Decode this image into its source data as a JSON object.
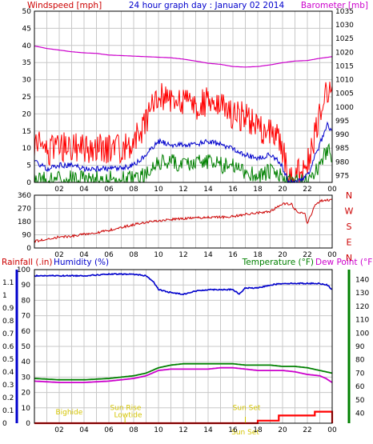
{
  "title": "24 hour graph day : January 02 2014",
  "colors": {
    "wind_avg": "#0000cc",
    "wind_gust": "#ff0000",
    "wind_low": "#008000",
    "baro": "#cc00cc",
    "wind_dir": "#cc0000",
    "temp": "#008000",
    "dew": "#cc00cc",
    "humidity": "#0000cc",
    "rain": "#ff0000",
    "astro": "#d4c400",
    "grid": "#c8c8c8",
    "frame": "#000000",
    "left_axis": "#0000cc",
    "right_axis": "#008000",
    "highlight": "#ff0000"
  },
  "chart_data": [
    {
      "type": "line",
      "name": "wind-barometer",
      "title": "24 hour graph day : January 02 2014",
      "left_label": "Windspeed [mph]",
      "right_label": "Barometer [mb]",
      "x_ticks": [
        "02",
        "04",
        "06",
        "08",
        "10",
        "12",
        "14",
        "16",
        "18",
        "20",
        "22",
        "00"
      ],
      "x_range": [
        0,
        24
      ],
      "y_left_ticks": [
        0,
        5,
        10,
        15,
        20,
        25,
        30,
        35,
        40,
        45,
        50
      ],
      "y_left_range": [
        0,
        50
      ],
      "y_right_ticks": [
        975,
        980,
        985,
        990,
        995,
        1000,
        1005,
        1010,
        1015,
        1020,
        1025,
        1030,
        1035
      ],
      "y_right_range": [
        972.5,
        1035
      ],
      "grid": true,
      "series": [
        {
          "axis": "right",
          "x": [
            0,
            1,
            2,
            3,
            4,
            5,
            6,
            7,
            8,
            9,
            10,
            11,
            12,
            13,
            14,
            15,
            16,
            17,
            18,
            19,
            20,
            21,
            22,
            23,
            24
          ],
          "values": [
            1022.3,
            1021.4,
            1020.8,
            1020.2,
            1019.8,
            1019.6,
            1019.0,
            1018.8,
            1018.6,
            1018.4,
            1018.2,
            1018.0,
            1017.5,
            1016.8,
            1016.0,
            1015.6,
            1014.8,
            1014.6,
            1014.8,
            1015.4,
            1016.2,
            1016.8,
            1017.0,
            1017.8,
            1018.4
          ]
        },
        {
          "x": [
            0,
            1,
            2,
            3,
            4,
            5,
            6,
            7,
            8,
            9,
            10,
            11,
            12,
            13,
            14,
            15,
            16,
            17,
            18,
            19,
            19.8,
            20.5,
            21,
            22,
            23,
            23.6,
            24
          ],
          "values": [
            12,
            9,
            10,
            11,
            10,
            10,
            10,
            10,
            12,
            18,
            25,
            24,
            23,
            22,
            24,
            22,
            20,
            19,
            16,
            15,
            12,
            2,
            2,
            5,
            20,
            28,
            24
          ]
        },
        {
          "x": [
            0,
            1,
            2,
            3,
            4,
            5,
            6,
            7,
            8,
            9,
            10,
            11,
            12,
            13,
            14,
            15,
            16,
            17,
            18,
            19,
            19.8,
            20.5,
            21,
            22,
            23,
            23.6,
            24
          ],
          "values": [
            6,
            4,
            5,
            5,
            4,
            4,
            4,
            4,
            5,
            8,
            12,
            11,
            11,
            11,
            12,
            11,
            10,
            8,
            7,
            8,
            6,
            0,
            0,
            2,
            11,
            17,
            15
          ]
        },
        {
          "x": [
            0,
            1,
            2,
            3,
            4,
            5,
            6,
            7,
            8,
            9,
            10,
            11,
            12,
            13,
            14,
            15,
            16,
            17,
            18,
            19,
            19.8,
            20.5,
            21,
            22,
            23,
            23.6,
            24
          ],
          "values": [
            1,
            1,
            1,
            1,
            1,
            1,
            1,
            1,
            1,
            2,
            6,
            6,
            5,
            6,
            6,
            5,
            5,
            3,
            2,
            3,
            2,
            0,
            0,
            0,
            5,
            10,
            8
          ]
        }
      ]
    },
    {
      "type": "line",
      "name": "wind-direction",
      "x_ticks": [
        "02",
        "04",
        "06",
        "08",
        "10",
        "12",
        "14",
        "16",
        "18",
        "20",
        "22",
        "00"
      ],
      "x_range": [
        0,
        24
      ],
      "y_ticks": [
        0,
        90,
        180,
        270,
        360
      ],
      "y_range": [
        0,
        360
      ],
      "compass_labels": [
        "N",
        "W",
        "S",
        "E",
        "N"
      ],
      "grid": true,
      "series": [
        {
          "x": [
            0,
            1,
            2,
            3,
            4,
            5,
            6,
            7,
            8,
            9,
            10,
            11,
            12,
            13,
            14,
            15,
            16,
            17,
            18,
            19,
            20,
            20.7,
            21.2,
            21.8,
            22,
            22.6,
            23,
            24
          ],
          "values": [
            45,
            60,
            75,
            80,
            95,
            105,
            120,
            140,
            160,
            175,
            185,
            195,
            200,
            205,
            210,
            210,
            215,
            230,
            240,
            250,
            300,
            300,
            240,
            235,
            165,
            290,
            320,
            330
          ]
        }
      ]
    },
    {
      "type": "line",
      "name": "rain-humidity-temperature",
      "labels": {
        "rain": "Rainfall (.in)",
        "humidity": "Humidity (%)",
        "temperature": "Temperature (°F)",
        "dew": "Dew Point (°F)"
      },
      "x_ticks": [
        "02",
        "04",
        "06",
        "08",
        "10",
        "12",
        "14",
        "16",
        "18",
        "20",
        "22",
        "00"
      ],
      "x_range": [
        0,
        24
      ],
      "humidity_ticks": [
        0,
        10,
        20,
        30,
        40,
        50,
        60,
        70,
        80,
        90,
        100
      ],
      "humidity_range": [
        0,
        100
      ],
      "rain_ticks": [
        0,
        0.1,
        0.2,
        0.3,
        0.4,
        0.5,
        0.6,
        0.7,
        0.8,
        0.9,
        1,
        1.1
      ],
      "rain_range": [
        0,
        1.2
      ],
      "temp_ticks": [
        40,
        50,
        60,
        70,
        80,
        90,
        100,
        110,
        120,
        130,
        140
      ],
      "temp_range": [
        32.5,
        147.5
      ],
      "grid": true,
      "humidity": {
        "x": [
          0,
          2,
          4,
          6,
          7,
          8,
          9,
          9.6,
          10,
          11,
          12,
          13,
          14,
          15,
          16,
          16.5,
          17,
          18,
          19,
          20,
          21,
          22,
          23,
          23.6,
          24
        ],
        "values": [
          96,
          96,
          96,
          97,
          97,
          97,
          96,
          92,
          87,
          85,
          84,
          86,
          87,
          87,
          87,
          84,
          88,
          88,
          90,
          91,
          91,
          91,
          91,
          90,
          87
        ]
      },
      "temperature": {
        "x": [
          0,
          2,
          4,
          6,
          7,
          8,
          9,
          10,
          11,
          12,
          13,
          14,
          15,
          16,
          17,
          18,
          19,
          20,
          21,
          22,
          23,
          24
        ],
        "values": [
          66,
          65,
          65,
          66,
          67,
          68,
          70,
          74,
          76,
          77,
          77,
          77,
          77,
          77,
          76,
          76,
          76,
          75,
          75,
          74,
          72,
          70
        ]
      },
      "dew": {
        "x": [
          0,
          2,
          4,
          6,
          7,
          8,
          9,
          10,
          11,
          12,
          13,
          14,
          15,
          16,
          17,
          18,
          19,
          20,
          21,
          22,
          23,
          23.5,
          24
        ],
        "values": [
          64,
          63,
          63,
          64,
          65,
          66,
          68,
          72,
          73,
          73,
          73,
          73,
          74,
          74,
          73,
          72,
          72,
          72,
          71,
          69,
          68,
          66,
          63
        ]
      },
      "rain": {
        "x": [
          0,
          17.8,
          18,
          19.6,
          19.7,
          22.5,
          22.6,
          23.8,
          24
        ],
        "values": [
          0,
          0,
          0.02,
          0.02,
          0.06,
          0.06,
          0.09,
          0.09,
          0
        ]
      },
      "annotations": [
        {
          "text": "Bighide",
          "x": 2.8,
          "level": 0.17
        },
        {
          "text": "Sun Rise",
          "x": 7.35,
          "level": 0.26
        },
        {
          "text": "Lowtide",
          "x": 7.55,
          "level": 0.12
        },
        {
          "text": "Sun Set",
          "x": 17.1,
          "level": 0.26
        },
        {
          "text": "Sun Set",
          "x": 17.0,
          "level": -0.12
        }
      ]
    }
  ]
}
